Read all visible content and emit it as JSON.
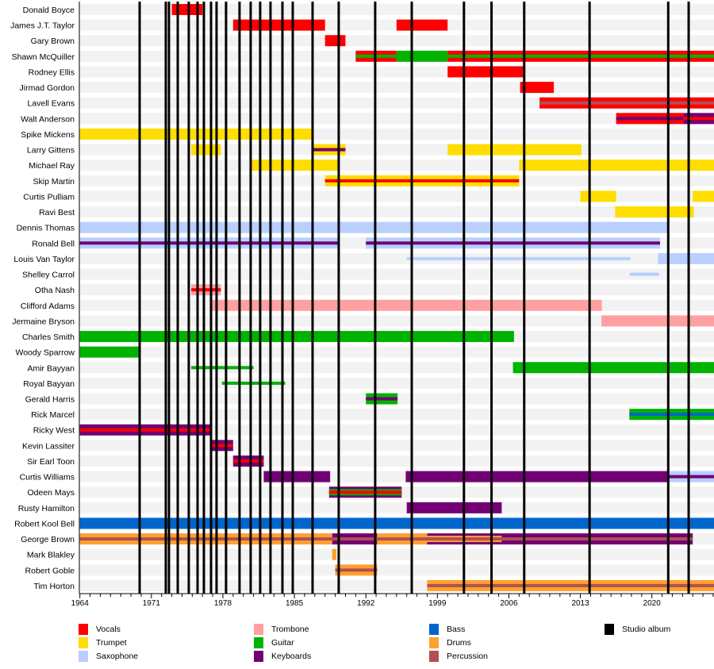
{
  "chart_data": {
    "type": "timeline",
    "xlim": [
      1964,
      2026.1
    ],
    "x_ticks": [
      "1964",
      "1971",
      "1978",
      "1985",
      "1992",
      "1999",
      "2006",
      "2013",
      "2020"
    ],
    "roles": {
      "Vocals": "#ff0000",
      "Trumpet": "#ffdd00",
      "Saxophone": "#b8cfff",
      "Trombone": "#ffa0a0",
      "Guitar": "#00b300",
      "Keyboards": "#730073",
      "Bass": "#0066cc",
      "Drums": "#ffa030",
      "Percussion": "#b05050"
    },
    "studio_album_color": "#000000",
    "studio_albums": [
      1969.85,
      1972.41,
      1972.72,
      1973.58,
      1974.66,
      1975.52,
      1976.14,
      1976.84,
      1977.38,
      1978.31,
      1979.63,
      1980.72,
      1981.65,
      1982.66,
      1983.83,
      1984.84,
      1986.78,
      1989.34,
      1992.91,
      1996.49,
      2001.6,
      2004.3,
      2007.5,
      2013.9,
      2021.6,
      2023.6
    ],
    "members": [
      {
        "name": "Donald Boyce",
        "bars": [
          {
            "start": 1973,
            "end": 1976,
            "role": "Vocals"
          }
        ]
      },
      {
        "name": "James J.T. Taylor",
        "bars": [
          {
            "start": 1979,
            "end": 1988,
            "role": "Vocals"
          },
          {
            "start": 1995,
            "end": 2000,
            "role": "Vocals"
          }
        ]
      },
      {
        "name": "Gary Brown",
        "bars": [
          {
            "start": 1988,
            "end": 1990,
            "role": "Vocals"
          }
        ]
      },
      {
        "name": "Shawn McQuiller",
        "bars": [
          {
            "start": 1991,
            "end": 1995,
            "role": "Vocals",
            "stripes": [
              "Guitar"
            ]
          },
          {
            "start": 1995,
            "end": 2000,
            "role": "Guitar"
          },
          {
            "start": 2000,
            "end": 2026.1,
            "role": "Vocals",
            "stripes": [
              "Guitar"
            ]
          }
        ]
      },
      {
        "name": "Rodney Ellis",
        "bars": [
          {
            "start": 2000,
            "end": 2007.6,
            "role": "Vocals"
          }
        ]
      },
      {
        "name": "Jirmad Gordon",
        "bars": [
          {
            "start": 2007.1,
            "end": 2010.4,
            "role": "Vocals"
          }
        ]
      },
      {
        "name": "Lavell Evans",
        "bars": [
          {
            "start": 2009,
            "end": 2026.1,
            "role": "Vocals",
            "stripes": [
              "Percussion"
            ]
          }
        ]
      },
      {
        "name": "Walt Anderson",
        "bars": [
          {
            "start": 2016.5,
            "end": 2023.1,
            "role": "Vocals",
            "stripes": [
              "Keyboards"
            ]
          },
          {
            "start": 2023.1,
            "end": 2026.1,
            "role": "Keyboards",
            "stripes": [
              "Vocals"
            ]
          }
        ]
      },
      {
        "name": "Spike Mickens",
        "bars": [
          {
            "start": 1964,
            "end": 1986.9,
            "role": "Trumpet"
          }
        ]
      },
      {
        "name": "Larry Gittens",
        "bars": [
          {
            "start": 1974.9,
            "end": 1977.8,
            "role": "Trumpet"
          },
          {
            "start": 1986.9,
            "end": 1990,
            "role": "Trumpet",
            "stripes": [
              "Keyboards"
            ]
          },
          {
            "start": 2000,
            "end": 2013.1,
            "role": "Trumpet"
          }
        ]
      },
      {
        "name": "Michael Ray",
        "bars": [
          {
            "start": 1980.8,
            "end": 1989.4,
            "role": "Trumpet"
          },
          {
            "start": 2007,
            "end": 2026.1,
            "role": "Trumpet"
          }
        ]
      },
      {
        "name": "Skip Martin",
        "bars": [
          {
            "start": 1988,
            "end": 2007,
            "role": "Trumpet",
            "stripes": [
              "Vocals"
            ]
          }
        ]
      },
      {
        "name": "Curtis Pulliam",
        "bars": [
          {
            "start": 2013,
            "end": 2016.5,
            "role": "Trumpet"
          },
          {
            "start": 2024,
            "end": 2026.1,
            "role": "Trumpet"
          }
        ]
      },
      {
        "name": "Ravi Best",
        "bars": [
          {
            "start": 2016.4,
            "end": 2024.1,
            "role": "Trumpet"
          }
        ]
      },
      {
        "name": "Dennis Thomas",
        "bars": [
          {
            "start": 1964,
            "end": 2021.7,
            "role": "Saxophone"
          }
        ]
      },
      {
        "name": "Ronald Bell",
        "bars": [
          {
            "start": 1964,
            "end": 1989.4,
            "role": "Saxophone",
            "stripes": [
              "Keyboards"
            ]
          },
          {
            "start": 1992,
            "end": 2020.8,
            "role": "Saxophone",
            "stripes": [
              "Keyboards"
            ]
          }
        ]
      },
      {
        "name": "Louis Van Taylor",
        "bars": [
          {
            "start": 1996,
            "end": 2017.9,
            "role": "Saxophone",
            "thin": true
          },
          {
            "start": 2020.6,
            "end": 2026.1,
            "role": "Saxophone"
          }
        ]
      },
      {
        "name": "Shelley Carrol",
        "bars": [
          {
            "start": 2017.8,
            "end": 2020.7,
            "role": "Saxophone",
            "thin": true
          }
        ]
      },
      {
        "name": "Otha Nash",
        "bars": [
          {
            "start": 1974.9,
            "end": 1977.8,
            "role": "Trombone",
            "stripes": [
              "Vocals"
            ]
          }
        ]
      },
      {
        "name": "Clifford Adams",
        "bars": [
          {
            "start": 1976.9,
            "end": 2015.1,
            "role": "Trombone"
          }
        ]
      },
      {
        "name": "Jermaine Bryson",
        "bars": [
          {
            "start": 2015.05,
            "end": 2026.1,
            "role": "Trombone"
          }
        ]
      },
      {
        "name": "Charles Smith",
        "bars": [
          {
            "start": 1964,
            "end": 2006.5,
            "role": "Guitar"
          }
        ]
      },
      {
        "name": "Woody Sparrow",
        "bars": [
          {
            "start": 1964,
            "end": 1969.9,
            "role": "Guitar"
          }
        ]
      },
      {
        "name": "Amir Bayyan",
        "bars": [
          {
            "start": 1974.9,
            "end": 1981,
            "role": "Guitar",
            "thin": true
          },
          {
            "start": 2006.4,
            "end": 2026.1,
            "role": "Guitar"
          }
        ]
      },
      {
        "name": "Royal Bayyan",
        "bars": [
          {
            "start": 1977.9,
            "end": 1984.1,
            "role": "Guitar",
            "thin": true
          }
        ]
      },
      {
        "name": "Gerald Harris",
        "bars": [
          {
            "start": 1992,
            "end": 1995.1,
            "role": "Guitar",
            "stripes": [
              "Keyboards"
            ]
          }
        ]
      },
      {
        "name": "Rick Marcel",
        "bars": [
          {
            "start": 2017.8,
            "end": 2026.1,
            "role": "Guitar",
            "stripes": [
              "Bass"
            ]
          }
        ]
      },
      {
        "name": "Ricky West",
        "bars": [
          {
            "start": 1964,
            "end": 1976.8,
            "role": "Keyboards",
            "stripes": [
              "Vocals"
            ]
          }
        ]
      },
      {
        "name": "Kevin Lassiter",
        "bars": [
          {
            "start": 1976.8,
            "end": 1979,
            "role": "Keyboards",
            "stripes": [
              "Vocals"
            ]
          }
        ]
      },
      {
        "name": "Sir Earl Toon",
        "bars": [
          {
            "start": 1979,
            "end": 1982,
            "role": "Keyboards",
            "stripes": [
              "Vocals"
            ]
          }
        ]
      },
      {
        "name": "Curtis Williams",
        "bars": [
          {
            "start": 1982,
            "end": 1988.5,
            "role": "Keyboards"
          },
          {
            "start": 1995.9,
            "end": 2021.7,
            "role": "Keyboards"
          },
          {
            "start": 2021.7,
            "end": 2026.1,
            "role": "Saxophone",
            "stripes": [
              "Keyboards"
            ]
          }
        ]
      },
      {
        "name": "Odeen Mays",
        "bars": [
          {
            "start": 1988.4,
            "end": 1995.5,
            "role": "Keyboards",
            "stripes": [
              "Guitar",
              "Vocals"
            ]
          }
        ]
      },
      {
        "name": "Rusty Hamilton",
        "bars": [
          {
            "start": 1996,
            "end": 2005.3,
            "role": "Keyboards"
          }
        ]
      },
      {
        "name": "Robert Kool Bell",
        "bars": [
          {
            "start": 1964,
            "end": 2026.1,
            "role": "Bass"
          }
        ]
      },
      {
        "name": "George Brown",
        "bars": [
          {
            "start": 1964,
            "end": 1988.7,
            "role": "Drums",
            "stripes": [
              "Percussion"
            ]
          },
          {
            "start": 1988.7,
            "end": 1993.1,
            "role": "Keyboards",
            "stripes": [
              "Percussion"
            ]
          },
          {
            "start": 1993.1,
            "end": 1998,
            "role": "Drums",
            "stripes": [
              "Percussion"
            ]
          },
          {
            "start": 1998,
            "end": 2005.3,
            "role": "Keyboards",
            "stripes": [
              "Drums",
              "Percussion"
            ]
          },
          {
            "start": 2005.3,
            "end": 2024,
            "role": "Keyboards",
            "stripes": [
              "Percussion"
            ]
          }
        ]
      },
      {
        "name": "Mark Blakley",
        "bars": [
          {
            "start": 1988.7,
            "end": 1989.1,
            "role": "Drums"
          }
        ]
      },
      {
        "name": "Robert Goble",
        "bars": [
          {
            "start": 1989,
            "end": 1993.1,
            "role": "Drums",
            "stripes": [
              "Percussion"
            ]
          }
        ]
      },
      {
        "name": "Tim Horton",
        "bars": [
          {
            "start": 1998,
            "end": 2026.1,
            "role": "Drums",
            "stripes": [
              "Percussion"
            ]
          }
        ]
      }
    ],
    "legend": [
      {
        "label": "Vocals",
        "color": "#ff0000"
      },
      {
        "label": "Trumpet",
        "color": "#ffdd00"
      },
      {
        "label": "Saxophone",
        "color": "#b8cfff"
      },
      {
        "label": "Trombone",
        "color": "#ffa0a0"
      },
      {
        "label": "Guitar",
        "color": "#00b300"
      },
      {
        "label": "Keyboards",
        "color": "#730073"
      },
      {
        "label": "Bass",
        "color": "#0066cc"
      },
      {
        "label": "Drums",
        "color": "#ffa030"
      },
      {
        "label": "Percussion",
        "color": "#b05050"
      },
      {
        "label": "Studio album",
        "color": "#000000"
      }
    ],
    "legend_placement": "bottom"
  }
}
